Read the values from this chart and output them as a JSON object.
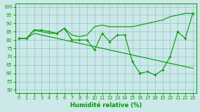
{
  "title": "",
  "xlabel": "Humidité relative (%)",
  "ylabel": "",
  "bg_color": "#cce8e8",
  "grid_color": "#99cccc",
  "line_color": "#009900",
  "xlim": [
    -0.5,
    23.5
  ],
  "ylim": [
    48,
    102
  ],
  "yticks": [
    50,
    55,
    60,
    65,
    70,
    75,
    80,
    85,
    90,
    95,
    100
  ],
  "xticks": [
    0,
    1,
    2,
    3,
    4,
    5,
    6,
    7,
    8,
    9,
    10,
    11,
    12,
    13,
    14,
    15,
    16,
    17,
    18,
    19,
    20,
    21,
    22,
    23
  ],
  "series1_x": [
    0,
    1,
    2,
    3,
    4,
    5,
    6,
    7,
    8,
    9,
    10,
    11,
    12,
    13,
    14,
    15,
    16,
    17,
    18,
    19,
    20,
    21,
    22,
    23
  ],
  "series1_y": [
    81,
    81,
    86,
    86,
    85,
    84,
    87,
    80,
    80,
    80,
    74,
    84,
    79,
    83,
    83,
    67,
    60,
    61,
    59,
    62,
    70,
    85,
    81,
    96
  ],
  "series2_x": [
    0,
    1,
    2,
    3,
    4,
    5,
    6,
    7,
    8,
    9,
    10,
    11,
    12,
    13,
    14,
    15,
    16,
    17,
    18,
    19,
    20,
    21,
    22,
    23
  ],
  "series2_y": [
    81,
    81,
    86,
    85,
    84,
    84,
    87,
    83,
    82,
    83,
    88,
    89,
    88,
    88,
    88,
    88,
    89,
    90,
    91,
    92,
    94,
    95,
    96,
    96
  ],
  "series3_x": [
    0,
    1,
    2,
    3,
    4,
    5,
    6,
    7,
    8,
    9,
    10,
    11,
    12,
    13,
    14,
    15,
    16,
    17,
    18,
    19,
    20,
    21,
    22,
    23
  ],
  "series3_y": [
    81,
    81,
    84,
    83,
    82,
    81,
    80,
    79,
    78,
    77,
    76,
    75,
    74,
    73,
    72,
    71,
    70,
    69,
    68,
    67,
    66,
    65,
    64,
    63
  ]
}
